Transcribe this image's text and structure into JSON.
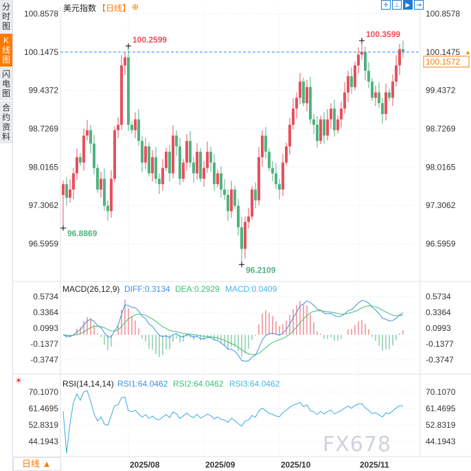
{
  "sidebar": {
    "tabs": [
      {
        "label": "分时图"
      },
      {
        "label": "K线图",
        "active": true
      },
      {
        "label": "闪电图"
      },
      {
        "label": "合约资料"
      }
    ]
  },
  "header": {
    "title": "美元指数",
    "period": "【日线】",
    "add_icon": "circle-plus-icon"
  },
  "toolbar": {
    "icons": [
      "crosshair-icon",
      "zoom-range-icon",
      "play-range-icon",
      "jump-end-icon"
    ]
  },
  "bottom": {
    "period_label": "日线 ▲"
  },
  "watermark": "FX678",
  "colors": {
    "up": "#e8505b",
    "down": "#4fb37f",
    "diff": "#3a8ee6",
    "dea": "#3bbf70",
    "macd": "#42b6e8",
    "rsi": "#3aa8e0",
    "accent": "#ff7a00",
    "last_line": "#1a8cff"
  },
  "chart_data": [
    {
      "type": "candlestick",
      "title": "美元指数【日线】",
      "yticks": [
        "100.8578",
        "100.1475",
        "99.4372",
        "98.7269",
        "98.0165",
        "97.3062",
        "96.5959"
      ],
      "ylim": [
        96.5959,
        100.8578
      ],
      "xticks": [
        {
          "label": "2025/08",
          "index": 19
        },
        {
          "label": "2025/09",
          "index": 41
        },
        {
          "label": "2025/10",
          "index": 63
        },
        {
          "label": "2025/11",
          "index": 86
        }
      ],
      "first_open": 97.5,
      "close": [
        97.7,
        97.45,
        97.6,
        97.9,
        98.2,
        98.1,
        98.6,
        98.7,
        98.45,
        98.0,
        97.6,
        97.8,
        97.3,
        97.2,
        97.8,
        98.7,
        98.8,
        99.9,
        100.05,
        98.8,
        98.7,
        98.9,
        98.5,
        98.1,
        98.4,
        97.9,
        98.2,
        97.8,
        97.7,
        98.0,
        98.3,
        97.9,
        98.6,
        98.4,
        97.8,
        98.1,
        98.5,
        98.1,
        97.9,
        98.3,
        97.8,
        98.0,
        98.3,
        98.1,
        97.7,
        97.9,
        97.6,
        97.5,
        97.2,
        97.6,
        97.3,
        96.9,
        96.5,
        97.0,
        97.1,
        97.6,
        97.4,
        98.2,
        98.6,
        98.3,
        98.0,
        97.9,
        97.7,
        97.6,
        98.1,
        98.4,
        98.8,
        99.1,
        99.3,
        99.6,
        99.2,
        99.5,
        98.9,
        98.8,
        98.5,
        98.9,
        98.6,
        98.9,
        99.1,
        98.7,
        98.9,
        99.1,
        99.4,
        99.7,
        99.5,
        99.9,
        100.1,
        100.15,
        99.8,
        99.6,
        99.3,
        99.4,
        99.2,
        99.0,
        99.4,
        99.3,
        99.6,
        99.9,
        100.2,
        100.1572
      ],
      "annotations": [
        {
          "index": 0,
          "value": "96.8869",
          "kind": "low"
        },
        {
          "index": 19,
          "value": "100.2599",
          "kind": "high"
        },
        {
          "index": 52,
          "value": "96.2109",
          "kind": "low"
        },
        {
          "index": 87,
          "value": "100.3599",
          "kind": "high"
        }
      ],
      "last_price": "100.1572",
      "ref_line": "100.1475"
    },
    {
      "type": "macd",
      "legend": {
        "name": "MACD(26,12,9)",
        "diff": "DIFF:0.3134",
        "dea": "DEA:0.2929",
        "macd": "MACD:0.0409"
      },
      "yticks": [
        "0.5734",
        "0.3364",
        "0.0993",
        "-0.1377",
        "-0.3747"
      ],
      "ylim": [
        -0.3747,
        0.5734
      ]
    },
    {
      "type": "rsi",
      "legend": {
        "name": "RSI(14,14,14)",
        "rsi1": "RSI1:64.0462",
        "rsi2": "RSI2:64.0462",
        "rsi3": "RSI3:64.0462"
      },
      "yticks": [
        "70.1070",
        "61.4695",
        "52.8319",
        "44.1943"
      ],
      "ylim": [
        44.1943,
        70.107
      ]
    }
  ]
}
